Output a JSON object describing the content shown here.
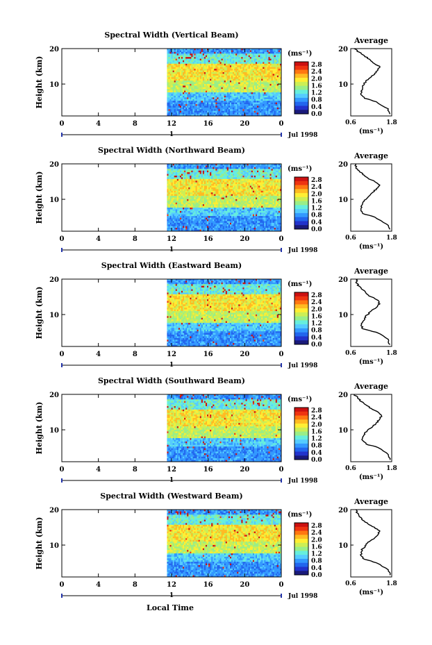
{
  "figure": {
    "xlabel": "Local Time",
    "date_label": "Jul 1998",
    "day_label": "1",
    "colorbar_unit": "(ms⁻¹)",
    "average_title": "Average",
    "average_unit": "(ms⁻¹)"
  },
  "chart_data": [
    {
      "type": "heatmap",
      "title": "Spectral Width (Vertical Beam)",
      "ylabel": "Height (km)",
      "x_ticks": [
        "0",
        "4",
        "8",
        "12",
        "16",
        "20",
        "0"
      ],
      "y_ticks": [
        "20",
        "10"
      ],
      "xlim": [
        0,
        24
      ],
      "ylim": [
        1,
        20
      ],
      "data_start_hour": 11.5,
      "colorbar_ticks": [
        "2.8",
        "2.4",
        "2.0",
        "1.6",
        "1.2",
        "0.8",
        "0.4",
        "0.0"
      ],
      "average": {
        "xlim": [
          0.6,
          1.8
        ],
        "x_ticks": [
          "0.6",
          "1.8"
        ],
        "y_ticks": [
          "20",
          "10"
        ],
        "heights": [
          1.5,
          3,
          5,
          6,
          7,
          8,
          9,
          10,
          11,
          12,
          13,
          14,
          15,
          16,
          17,
          18,
          19,
          20
        ],
        "values": [
          1.75,
          1.7,
          1.35,
          1.0,
          0.9,
          0.9,
          0.95,
          1.0,
          1.05,
          1.2,
          1.3,
          1.4,
          1.45,
          1.25,
          1.15,
          1.0,
          0.85,
          0.7
        ]
      }
    },
    {
      "type": "heatmap",
      "title": "Spectral Width (Northward Beam)",
      "ylabel": "Height (km)",
      "x_ticks": [
        "0",
        "4",
        "8",
        "12",
        "16",
        "20",
        "0"
      ],
      "y_ticks": [
        "20",
        "10"
      ],
      "xlim": [
        0,
        24
      ],
      "ylim": [
        1,
        20
      ],
      "data_start_hour": 11.5,
      "colorbar_ticks": [
        "2.8",
        "2.4",
        "2.0",
        "1.6",
        "1.2",
        "0.8",
        "0.4",
        "0.0"
      ],
      "average": {
        "xlim": [
          0.6,
          1.8
        ],
        "x_ticks": [
          "0.6",
          "1.8"
        ],
        "y_ticks": [
          "20",
          "10"
        ],
        "heights": [
          1.5,
          3,
          5,
          6,
          7,
          8,
          9,
          10,
          11,
          12,
          13,
          14,
          15,
          16,
          17,
          18,
          19,
          20
        ],
        "values": [
          1.75,
          1.65,
          1.3,
          0.95,
          0.9,
          0.9,
          0.95,
          1.05,
          1.15,
          1.25,
          1.35,
          1.45,
          1.3,
          1.1,
          0.95,
          0.85,
          0.75,
          0.75
        ]
      }
    },
    {
      "type": "heatmap",
      "title": "Spectral Width (Eastward Beam)",
      "ylabel": "Height (km)",
      "x_ticks": [
        "0",
        "4",
        "8",
        "12",
        "16",
        "20",
        "0"
      ],
      "y_ticks": [
        "20",
        "10"
      ],
      "xlim": [
        0,
        24
      ],
      "ylim": [
        1,
        20
      ],
      "data_start_hour": 11.5,
      "colorbar_ticks": [
        "2.8",
        "2.4",
        "2.0",
        "1.6",
        "1.2",
        "0.8",
        "0.4",
        "0.0"
      ],
      "average": {
        "xlim": [
          0.6,
          1.8
        ],
        "x_ticks": [
          "0.6",
          "1.8"
        ],
        "y_ticks": [
          "20",
          "10"
        ],
        "heights": [
          1.5,
          3,
          5,
          6,
          7,
          8,
          9,
          10,
          11,
          12,
          13,
          14,
          15,
          16,
          17,
          18,
          19,
          20
        ],
        "values": [
          1.75,
          1.7,
          1.35,
          0.95,
          0.9,
          0.95,
          1.0,
          1.1,
          1.2,
          1.35,
          1.45,
          1.4,
          1.2,
          1.05,
          0.95,
          0.85,
          0.75,
          0.8
        ]
      }
    },
    {
      "type": "heatmap",
      "title": "Spectral Width (Southward Beam)",
      "ylabel": "Height (km)",
      "x_ticks": [
        "0",
        "4",
        "8",
        "12",
        "16",
        "20",
        "0"
      ],
      "y_ticks": [
        "20",
        "10"
      ],
      "xlim": [
        0,
        24
      ],
      "ylim": [
        1,
        20
      ],
      "data_start_hour": 11.5,
      "colorbar_ticks": [
        "2.8",
        "2.4",
        "2.0",
        "1.6",
        "1.2",
        "0.8",
        "0.4",
        "0.0"
      ],
      "average": {
        "xlim": [
          0.6,
          1.8
        ],
        "x_ticks": [
          "0.6",
          "1.8"
        ],
        "y_ticks": [
          "20",
          "10"
        ],
        "heights": [
          1.5,
          3,
          5,
          6,
          7,
          8,
          9,
          10,
          11,
          12,
          13,
          14,
          15,
          16,
          17,
          18,
          19,
          20
        ],
        "values": [
          1.75,
          1.7,
          1.4,
          1.05,
          0.95,
          0.95,
          1.0,
          1.1,
          1.25,
          1.35,
          1.45,
          1.5,
          1.4,
          1.2,
          1.05,
          0.9,
          0.8,
          0.7
        ]
      }
    },
    {
      "type": "heatmap",
      "title": "Spectral Width (Westward Beam)",
      "ylabel": "Height (km)",
      "x_ticks": [
        "0",
        "4",
        "8",
        "12",
        "16",
        "20",
        "0"
      ],
      "y_ticks": [
        "20",
        "10"
      ],
      "xlim": [
        0,
        24
      ],
      "ylim": [
        1,
        20
      ],
      "data_start_hour": 11.5,
      "colorbar_ticks": [
        "2.8",
        "2.4",
        "2.0",
        "1.6",
        "1.2",
        "0.8",
        "0.4",
        "0.0"
      ],
      "average": {
        "xlim": [
          0.6,
          1.8
        ],
        "x_ticks": [
          "0.6",
          "1.8"
        ],
        "y_ticks": [
          "20",
          "10"
        ],
        "heights": [
          1.5,
          3,
          5,
          6,
          7,
          8,
          9,
          10,
          11,
          12,
          13,
          14,
          15,
          16,
          17,
          18,
          19,
          20
        ],
        "values": [
          1.75,
          1.7,
          1.35,
          1.0,
          0.9,
          0.9,
          0.95,
          1.05,
          1.15,
          1.3,
          1.4,
          1.45,
          1.3,
          1.1,
          0.95,
          0.85,
          0.8,
          0.75
        ]
      }
    }
  ]
}
